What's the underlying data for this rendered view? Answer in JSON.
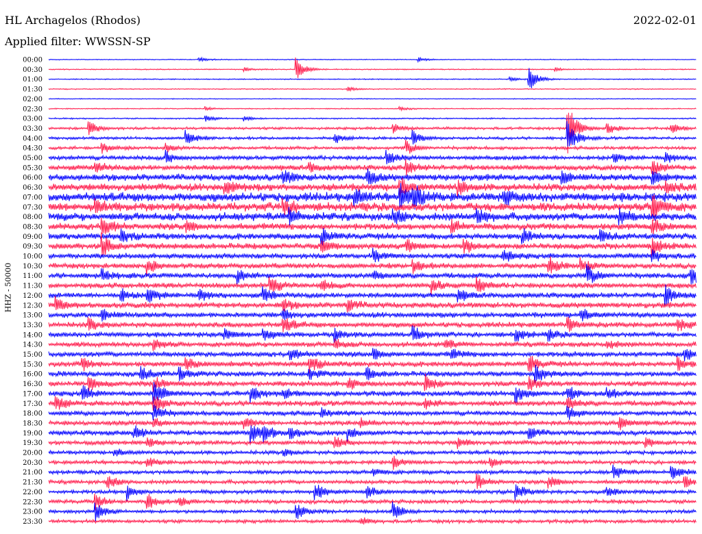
{
  "header": {
    "station": "HL Archagelos (Rhodos)",
    "date": "2022-02-01",
    "filter": "Applied filter: WWSSN-SP"
  },
  "chart_data": {
    "type": "line",
    "kind": "helicorder",
    "ylabel": "HHZ - 50000",
    "trace_colors": [
      "#0000ff",
      "#ff1a4b"
    ],
    "rows": [
      "00:00",
      "00:30",
      "01:00",
      "01:30",
      "02:00",
      "02:30",
      "03:00",
      "03:30",
      "04:00",
      "04:30",
      "05:00",
      "05:30",
      "06:00",
      "06:30",
      "07:00",
      "07:30",
      "08:00",
      "08:30",
      "09:00",
      "09:30",
      "10:00",
      "10:30",
      "11:00",
      "11:30",
      "12:00",
      "12:30",
      "13:00",
      "13:30",
      "14:00",
      "14:30",
      "15:00",
      "15:30",
      "16:00",
      "16:30",
      "17:00",
      "17:30",
      "18:00",
      "18:30",
      "19:00",
      "19:30",
      "20:00",
      "20:30",
      "21:00",
      "21:30",
      "22:00",
      "22:30",
      "23:00",
      "23:30"
    ],
    "noise_level": [
      0.5,
      0.6,
      0.6,
      0.6,
      0.5,
      0.6,
      0.8,
      1.5,
      1.6,
      1.8,
      2.5,
      3.0,
      3.8,
      4.2,
      5.0,
      4.8,
      4.5,
      3.8,
      3.5,
      3.4,
      3.0,
      3.0,
      3.0,
      3.0,
      3.0,
      3.2,
      3.0,
      3.0,
      2.8,
      2.8,
      3.0,
      3.0,
      3.0,
      3.0,
      3.0,
      3.0,
      2.7,
      2.7,
      2.7,
      2.5,
      2.2,
      2.2,
      2.2,
      2.2,
      2.2,
      2.2,
      2.0,
      2.0
    ],
    "events": [
      {
        "row": "00:00",
        "t": 0.23,
        "amp": 4
      },
      {
        "row": "00:00",
        "t": 0.57,
        "amp": 3
      },
      {
        "row": "00:30",
        "t": 0.38,
        "amp": 18
      },
      {
        "row": "00:30",
        "t": 0.3,
        "amp": 3
      },
      {
        "row": "00:30",
        "t": 0.78,
        "amp": 3
      },
      {
        "row": "01:00",
        "t": 0.74,
        "amp": 20
      },
      {
        "row": "01:00",
        "t": 0.71,
        "amp": 4
      },
      {
        "row": "01:30",
        "t": 0.46,
        "amp": 4
      },
      {
        "row": "02:30",
        "t": 0.24,
        "amp": 3
      },
      {
        "row": "02:30",
        "t": 0.54,
        "amp": 3
      },
      {
        "row": "03:00",
        "t": 0.24,
        "amp": 5
      },
      {
        "row": "03:00",
        "t": 0.3,
        "amp": 4
      },
      {
        "row": "03:30",
        "t": 0.06,
        "amp": 12
      },
      {
        "row": "03:30",
        "t": 0.8,
        "amp": 40
      },
      {
        "row": "03:30",
        "t": 0.86,
        "amp": 10
      },
      {
        "row": "03:30",
        "t": 0.96,
        "amp": 8
      },
      {
        "row": "03:30",
        "t": 0.53,
        "amp": 8
      },
      {
        "row": "04:00",
        "t": 0.21,
        "amp": 14
      },
      {
        "row": "04:00",
        "t": 0.44,
        "amp": 8
      },
      {
        "row": "04:00",
        "t": 0.56,
        "amp": 12
      },
      {
        "row": "04:00",
        "t": 0.8,
        "amp": 25
      },
      {
        "row": "04:30",
        "t": 0.08,
        "amp": 10
      },
      {
        "row": "04:30",
        "t": 0.55,
        "amp": 12
      },
      {
        "row": "04:30",
        "t": 0.18,
        "amp": 6
      },
      {
        "row": "05:00",
        "t": 0.18,
        "amp": 10
      },
      {
        "row": "05:00",
        "t": 0.52,
        "amp": 10
      },
      {
        "row": "05:00",
        "t": 0.87,
        "amp": 8
      },
      {
        "row": "05:00",
        "t": 0.95,
        "amp": 10
      },
      {
        "row": "05:30",
        "t": 0.07,
        "amp": 10
      },
      {
        "row": "05:30",
        "t": 0.4,
        "amp": 8
      },
      {
        "row": "05:30",
        "t": 0.55,
        "amp": 12
      },
      {
        "row": "05:30",
        "t": 0.93,
        "amp": 12
      },
      {
        "row": "06:00",
        "t": 0.36,
        "amp": 12
      },
      {
        "row": "06:00",
        "t": 0.49,
        "amp": 12
      },
      {
        "row": "06:00",
        "t": 0.79,
        "amp": 10
      },
      {
        "row": "06:00",
        "t": 0.93,
        "amp": 12
      },
      {
        "row": "06:30",
        "t": 0.27,
        "amp": 10
      },
      {
        "row": "06:30",
        "t": 0.54,
        "amp": 15
      },
      {
        "row": "06:30",
        "t": 0.63,
        "amp": 12
      },
      {
        "row": "06:30",
        "t": 0.95,
        "amp": 10
      },
      {
        "row": "07:00",
        "t": 0.47,
        "amp": 14
      },
      {
        "row": "07:00",
        "t": 0.54,
        "amp": 22
      },
      {
        "row": "07:00",
        "t": 0.56,
        "amp": 18
      },
      {
        "row": "07:00",
        "t": 0.7,
        "amp": 12
      },
      {
        "row": "07:30",
        "t": 0.36,
        "amp": 14
      },
      {
        "row": "07:30",
        "t": 0.93,
        "amp": 28
      },
      {
        "row": "07:30",
        "t": 0.07,
        "amp": 10
      },
      {
        "row": "08:00",
        "t": 0.37,
        "amp": 12
      },
      {
        "row": "08:00",
        "t": 0.53,
        "amp": 10
      },
      {
        "row": "08:00",
        "t": 0.66,
        "amp": 12
      },
      {
        "row": "08:00",
        "t": 0.88,
        "amp": 10
      },
      {
        "row": "08:30",
        "t": 0.08,
        "amp": 18
      },
      {
        "row": "08:30",
        "t": 0.21,
        "amp": 8
      },
      {
        "row": "08:30",
        "t": 0.62,
        "amp": 10
      },
      {
        "row": "08:30",
        "t": 0.93,
        "amp": 12
      },
      {
        "row": "09:00",
        "t": 0.11,
        "amp": 10
      },
      {
        "row": "09:00",
        "t": 0.42,
        "amp": 12
      },
      {
        "row": "09:00",
        "t": 0.73,
        "amp": 10
      },
      {
        "row": "09:00",
        "t": 0.85,
        "amp": 10
      },
      {
        "row": "09:30",
        "t": 0.08,
        "amp": 20
      },
      {
        "row": "09:30",
        "t": 0.42,
        "amp": 10
      },
      {
        "row": "09:30",
        "t": 0.55,
        "amp": 12
      },
      {
        "row": "09:30",
        "t": 0.64,
        "amp": 12
      },
      {
        "row": "09:30",
        "t": 0.93,
        "amp": 14
      },
      {
        "row": "10:00",
        "t": 0.5,
        "amp": 10
      },
      {
        "row": "10:00",
        "t": 0.7,
        "amp": 12
      },
      {
        "row": "10:00",
        "t": 0.93,
        "amp": 10
      },
      {
        "row": "10:30",
        "t": 0.15,
        "amp": 12
      },
      {
        "row": "10:30",
        "t": 0.56,
        "amp": 10
      },
      {
        "row": "10:30",
        "t": 0.77,
        "amp": 16
      },
      {
        "row": "10:30",
        "t": 0.82,
        "amp": 10
      },
      {
        "row": "11:00",
        "t": 0.08,
        "amp": 10
      },
      {
        "row": "11:00",
        "t": 0.29,
        "amp": 10
      },
      {
        "row": "11:00",
        "t": 0.5,
        "amp": 8
      },
      {
        "row": "11:00",
        "t": 0.83,
        "amp": 16
      },
      {
        "row": "11:00",
        "t": 0.99,
        "amp": 14
      },
      {
        "row": "11:30",
        "t": 0.34,
        "amp": 14
      },
      {
        "row": "11:30",
        "t": 0.42,
        "amp": 10
      },
      {
        "row": "11:30",
        "t": 0.59,
        "amp": 12
      },
      {
        "row": "11:30",
        "t": 0.66,
        "amp": 12
      },
      {
        "row": "12:00",
        "t": 0.11,
        "amp": 10
      },
      {
        "row": "12:00",
        "t": 0.15,
        "amp": 14
      },
      {
        "row": "12:00",
        "t": 0.23,
        "amp": 12
      },
      {
        "row": "12:00",
        "t": 0.33,
        "amp": 12
      },
      {
        "row": "12:00",
        "t": 0.63,
        "amp": 10
      },
      {
        "row": "12:00",
        "t": 0.95,
        "amp": 16
      },
      {
        "row": "12:30",
        "t": 0.01,
        "amp": 10
      },
      {
        "row": "12:30",
        "t": 0.36,
        "amp": 10
      },
      {
        "row": "12:30",
        "t": 0.46,
        "amp": 10
      },
      {
        "row": "13:00",
        "t": 0.08,
        "amp": 10
      },
      {
        "row": "13:00",
        "t": 0.36,
        "amp": 8
      },
      {
        "row": "13:00",
        "t": 0.82,
        "amp": 10
      },
      {
        "row": "13:30",
        "t": 0.06,
        "amp": 10
      },
      {
        "row": "13:30",
        "t": 0.36,
        "amp": 14
      },
      {
        "row": "13:30",
        "t": 0.8,
        "amp": 10
      },
      {
        "row": "13:30",
        "t": 0.97,
        "amp": 10
      },
      {
        "row": "14:00",
        "t": 0.27,
        "amp": 10
      },
      {
        "row": "14:00",
        "t": 0.33,
        "amp": 10
      },
      {
        "row": "14:00",
        "t": 0.44,
        "amp": 10
      },
      {
        "row": "14:00",
        "t": 0.56,
        "amp": 14
      },
      {
        "row": "14:00",
        "t": 0.72,
        "amp": 10
      },
      {
        "row": "14:00",
        "t": 0.77,
        "amp": 8
      },
      {
        "row": "14:30",
        "t": 0.16,
        "amp": 10
      },
      {
        "row": "14:30",
        "t": 0.44,
        "amp": 8
      },
      {
        "row": "14:30",
        "t": 0.61,
        "amp": 8
      },
      {
        "row": "14:30",
        "t": 0.86,
        "amp": 8
      },
      {
        "row": "15:00",
        "t": 0.37,
        "amp": 10
      },
      {
        "row": "15:00",
        "t": 0.5,
        "amp": 8
      },
      {
        "row": "15:00",
        "t": 0.62,
        "amp": 8
      },
      {
        "row": "15:00",
        "t": 0.98,
        "amp": 10
      },
      {
        "row": "15:30",
        "t": 0.05,
        "amp": 10
      },
      {
        "row": "15:30",
        "t": 0.21,
        "amp": 10
      },
      {
        "row": "15:30",
        "t": 0.4,
        "amp": 14
      },
      {
        "row": "15:30",
        "t": 0.74,
        "amp": 14
      },
      {
        "row": "15:30",
        "t": 0.97,
        "amp": 10
      },
      {
        "row": "16:00",
        "t": 0.14,
        "amp": 12
      },
      {
        "row": "16:00",
        "t": 0.2,
        "amp": 10
      },
      {
        "row": "16:00",
        "t": 0.4,
        "amp": 10
      },
      {
        "row": "16:00",
        "t": 0.49,
        "amp": 10
      },
      {
        "row": "16:00",
        "t": 0.75,
        "amp": 14
      },
      {
        "row": "16:30",
        "t": 0.06,
        "amp": 10
      },
      {
        "row": "16:30",
        "t": 0.16,
        "amp": 14
      },
      {
        "row": "16:30",
        "t": 0.46,
        "amp": 10
      },
      {
        "row": "16:30",
        "t": 0.58,
        "amp": 14
      },
      {
        "row": "16:30",
        "t": 0.74,
        "amp": 12
      },
      {
        "row": "17:00",
        "t": 0.05,
        "amp": 12
      },
      {
        "row": "17:00",
        "t": 0.16,
        "amp": 20
      },
      {
        "row": "17:00",
        "t": 0.31,
        "amp": 12
      },
      {
        "row": "17:00",
        "t": 0.36,
        "amp": 8
      },
      {
        "row": "17:00",
        "t": 0.72,
        "amp": 14
      },
      {
        "row": "17:00",
        "t": 0.8,
        "amp": 10
      },
      {
        "row": "17:00",
        "t": 0.86,
        "amp": 8
      },
      {
        "row": "17:30",
        "t": 0.01,
        "amp": 12
      },
      {
        "row": "17:30",
        "t": 0.16,
        "amp": 16
      },
      {
        "row": "17:30",
        "t": 0.58,
        "amp": 8
      },
      {
        "row": "17:30",
        "t": 0.8,
        "amp": 10
      },
      {
        "row": "18:00",
        "t": 0.16,
        "amp": 14
      },
      {
        "row": "18:00",
        "t": 0.8,
        "amp": 10
      },
      {
        "row": "18:00",
        "t": 0.42,
        "amp": 6
      },
      {
        "row": "18:30",
        "t": 0.16,
        "amp": 8
      },
      {
        "row": "18:30",
        "t": 0.3,
        "amp": 10
      },
      {
        "row": "18:30",
        "t": 0.48,
        "amp": 8
      },
      {
        "row": "18:30",
        "t": 0.88,
        "amp": 10
      },
      {
        "row": "19:00",
        "t": 0.13,
        "amp": 12
      },
      {
        "row": "19:00",
        "t": 0.31,
        "amp": 16
      },
      {
        "row": "19:00",
        "t": 0.33,
        "amp": 14
      },
      {
        "row": "19:00",
        "t": 0.37,
        "amp": 10
      },
      {
        "row": "19:00",
        "t": 0.46,
        "amp": 12
      },
      {
        "row": "19:00",
        "t": 0.74,
        "amp": 10
      },
      {
        "row": "19:30",
        "t": 0.15,
        "amp": 8
      },
      {
        "row": "19:30",
        "t": 0.44,
        "amp": 10
      },
      {
        "row": "19:30",
        "t": 0.63,
        "amp": 8
      },
      {
        "row": "19:30",
        "t": 0.92,
        "amp": 8
      },
      {
        "row": "20:00",
        "t": 0.1,
        "amp": 6
      },
      {
        "row": "20:00",
        "t": 0.36,
        "amp": 6
      },
      {
        "row": "20:30",
        "t": 0.15,
        "amp": 8
      },
      {
        "row": "20:30",
        "t": 0.53,
        "amp": 10
      },
      {
        "row": "20:30",
        "t": 0.68,
        "amp": 8
      },
      {
        "row": "21:00",
        "t": 0.87,
        "amp": 12
      },
      {
        "row": "21:00",
        "t": 0.96,
        "amp": 14
      },
      {
        "row": "21:00",
        "t": 0.5,
        "amp": 8
      },
      {
        "row": "21:30",
        "t": 0.09,
        "amp": 10
      },
      {
        "row": "21:30",
        "t": 0.66,
        "amp": 12
      },
      {
        "row": "21:30",
        "t": 0.77,
        "amp": 10
      },
      {
        "row": "21:30",
        "t": 0.98,
        "amp": 10
      },
      {
        "row": "22:00",
        "t": 0.12,
        "amp": 12
      },
      {
        "row": "22:00",
        "t": 0.41,
        "amp": 14
      },
      {
        "row": "22:00",
        "t": 0.49,
        "amp": 10
      },
      {
        "row": "22:00",
        "t": 0.72,
        "amp": 12
      },
      {
        "row": "22:00",
        "t": 0.86,
        "amp": 8
      },
      {
        "row": "22:30",
        "t": 0.07,
        "amp": 12
      },
      {
        "row": "22:30",
        "t": 0.15,
        "amp": 14
      },
      {
        "row": "22:30",
        "t": 0.2,
        "amp": 8
      },
      {
        "row": "23:00",
        "t": 0.07,
        "amp": 16
      },
      {
        "row": "23:00",
        "t": 0.38,
        "amp": 14
      },
      {
        "row": "23:00",
        "t": 0.53,
        "amp": 14
      },
      {
        "row": "23:30",
        "t": 0.48,
        "amp": 6
      }
    ]
  }
}
